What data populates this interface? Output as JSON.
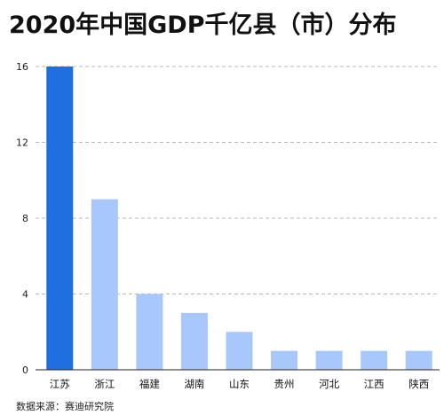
{
  "title": "2020年中国GDP千亿县（市）分布",
  "source": "数据来源：赛迪研究院",
  "chart_data": {
    "type": "bar",
    "categories": [
      "江苏",
      "浙江",
      "福建",
      "湖南",
      "山东",
      "贵州",
      "河北",
      "江西",
      "陕西"
    ],
    "values": [
      16,
      9,
      4,
      3,
      2,
      1,
      1,
      1,
      1
    ],
    "yticks": [
      0,
      4,
      8,
      12,
      16
    ],
    "ylim": [
      0,
      16
    ],
    "grid": true,
    "colors": {
      "highlight": "#1f6fe0",
      "default": "#a8c8fb"
    },
    "highlight_index": 0
  }
}
